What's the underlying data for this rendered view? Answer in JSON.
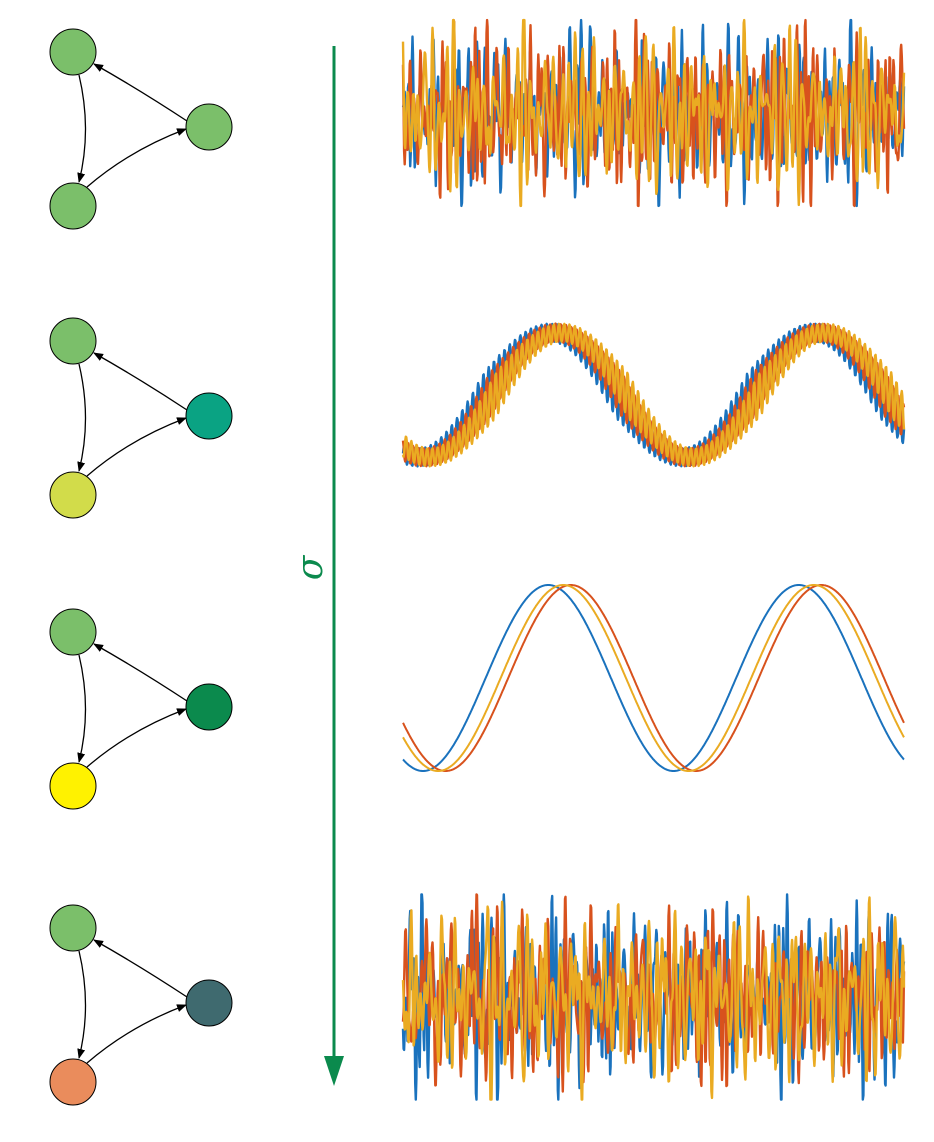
{
  "axis": {
    "label": "σ",
    "color": "#0b8a4d"
  },
  "colors": {
    "blue": "#1a72bd",
    "red": "#d8521d",
    "yellow": "#eaab22"
  },
  "panels": [
    {
      "nodes": {
        "top": "#7bbf6a",
        "right": "#7bbf6a",
        "bottom": "#7bbf6a"
      },
      "signal": "noisy"
    },
    {
      "nodes": {
        "top": "#7bbf6a",
        "right": "#0aa383",
        "bottom": "#d2dc4a"
      },
      "signal": "modulated"
    },
    {
      "nodes": {
        "top": "#7bbf6a",
        "right": "#0b8a4d",
        "bottom": "#fff200"
      },
      "signal": "periodic"
    },
    {
      "nodes": {
        "top": "#7bbf6a",
        "right": "#3f6a6f",
        "bottom": "#ea8c5c"
      },
      "signal": "noisy"
    }
  ]
}
